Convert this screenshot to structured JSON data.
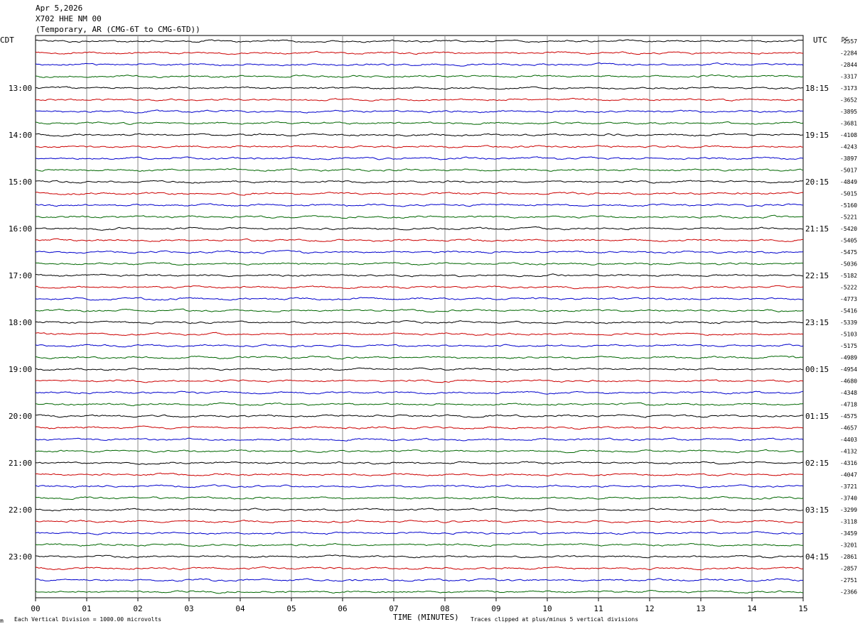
{
  "header": {
    "date": "Apr 5,2026",
    "station": "X702 HHE NM 00",
    "network": "(Temporary, AR (CMG-6T to CMG-6TD))"
  },
  "left_tz": "CDT",
  "right_tz": "UTC",
  "dc_label": "DC",
  "footer": {
    "scale_note": "Each Vertical Division = 1000.00 microvolts",
    "clip_note": "Traces clipped at plus/minus 5 vertical divisions",
    "corner_mark": "m"
  },
  "chart_data": {
    "type": "line",
    "title": "",
    "xlabel": "TIME (MINUTES)",
    "xlim": [
      0,
      15
    ],
    "x_ticks": [
      "00",
      "01",
      "02",
      "03",
      "04",
      "05",
      "06",
      "07",
      "08",
      "09",
      "10",
      "11",
      "12",
      "13",
      "14",
      "15"
    ],
    "grid": true,
    "trace_colors": [
      "#000000",
      "#cc0000",
      "#0000cc",
      "#006600"
    ],
    "left_hour_labels": [
      "13:00",
      "14:00",
      "15:00",
      "16:00",
      "17:00",
      "18:00",
      "19:00",
      "20:00",
      "21:00",
      "22:00",
      "23:00"
    ],
    "right_hour_labels": [
      "18:15",
      "19:15",
      "20:15",
      "21:15",
      "22:15",
      "23:15",
      "00:15",
      "01:15",
      "02:15",
      "03:15",
      "04:15"
    ],
    "dc_offsets": [
      -2557,
      -2284,
      -2844,
      -3317,
      -3173,
      -3652,
      -3895,
      -3681,
      -4108,
      -4243,
      -3897,
      -5017,
      -4849,
      -5015,
      -5160,
      -5221,
      -5420,
      -5405,
      -5475,
      -5036,
      -5182,
      -5222,
      -4773,
      -5416,
      -5339,
      -5103,
      -5175,
      -4989,
      -4954,
      -4680,
      -4348,
      -4718,
      -4575,
      -4657,
      -4403,
      -4132,
      -4316,
      -4047,
      -3721,
      -3740,
      -3299,
      -3118,
      -3459,
      -3201,
      -2861,
      -2857,
      -2751,
      -2366
    ]
  }
}
